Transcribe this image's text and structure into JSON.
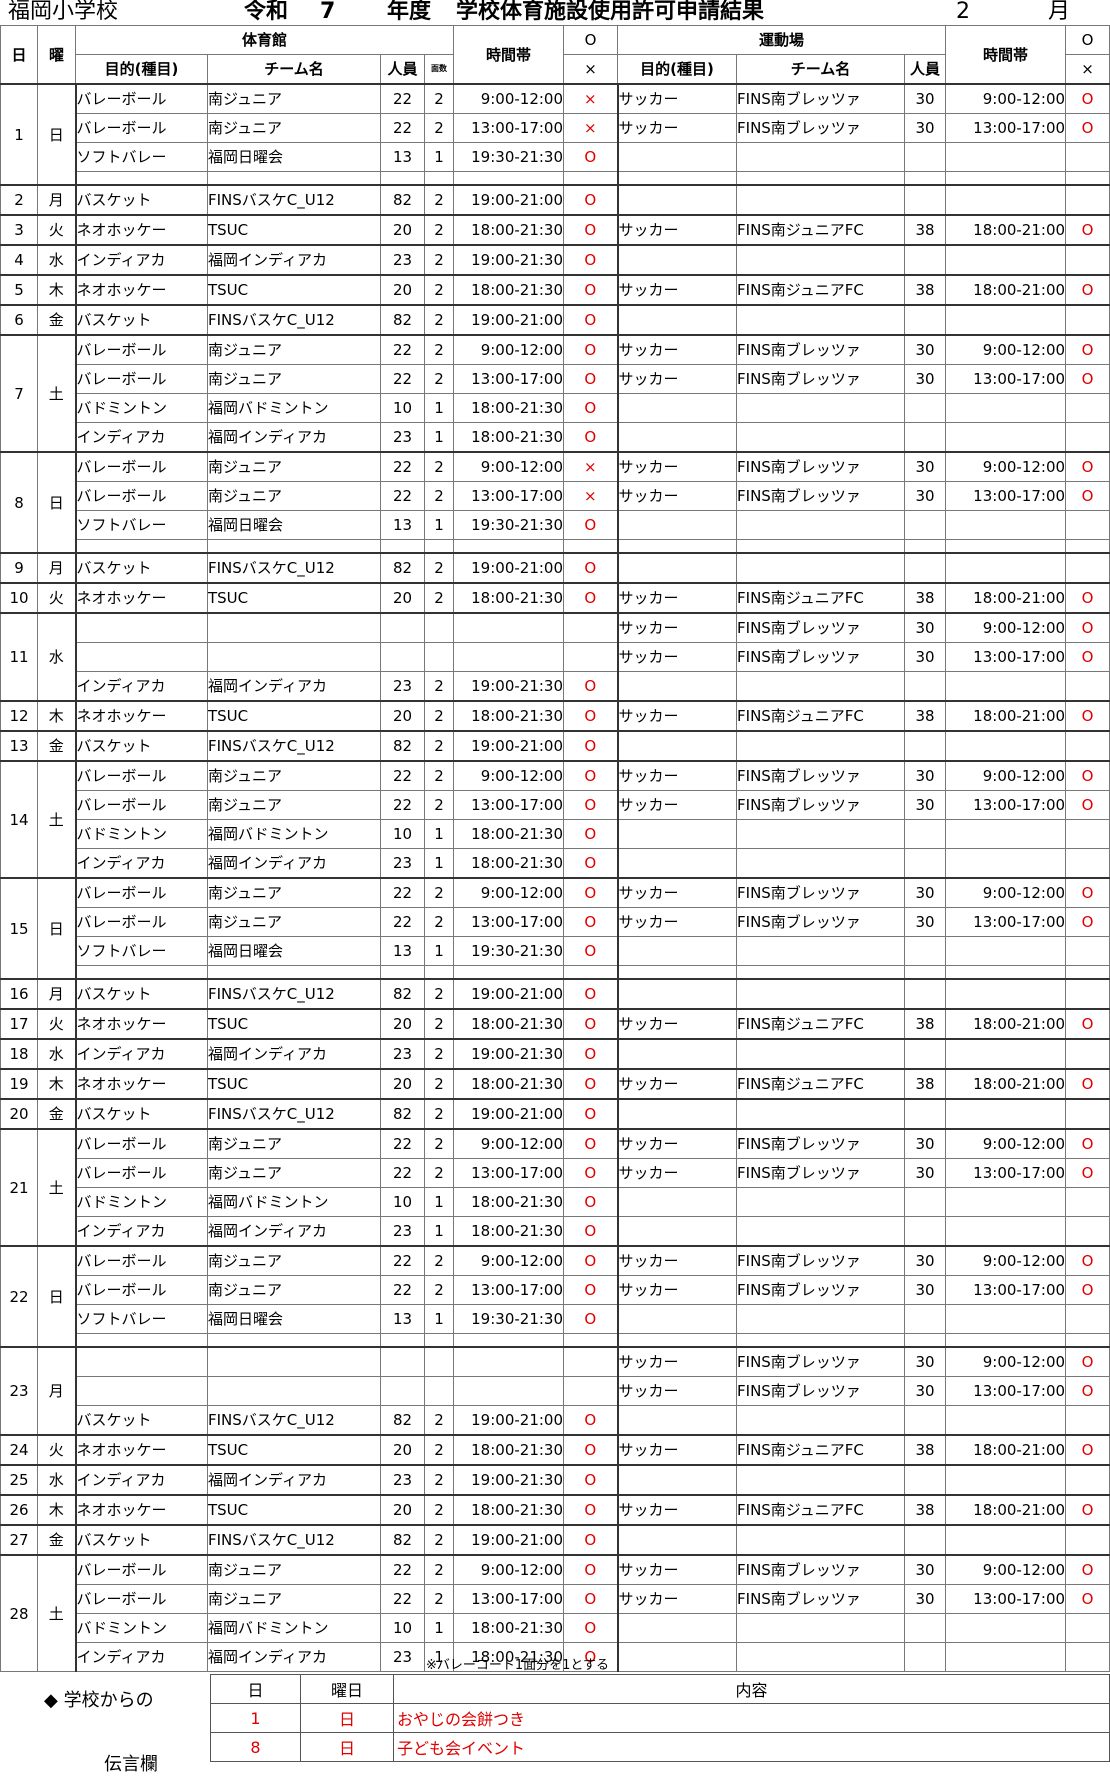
{
  "title": {
    "school": "福岡小学校",
    "era": "令和",
    "year_num": "7",
    "nendo": "年度",
    "main": "学校体育施設使用許可申請結果",
    "month": "2",
    "getsu": "月"
  },
  "header": {
    "day": "日",
    "dow": "曜",
    "gym": "体育館",
    "field": "運動場",
    "purpose": "目的(種目)",
    "team": "チーム名",
    "people": "人員",
    "courts": "面数",
    "time": "時間帯",
    "ok": "O",
    "ng": "×"
  },
  "days": [
    {
      "day": "1",
      "dow": "日",
      "rows": [
        {
          "g": [
            "バレーボール",
            "南ジュニア",
            "22",
            "2",
            "9:00-12:00",
            "×"
          ],
          "f": [
            "サッカー",
            "FINS南ブレッツァ",
            "30",
            "9:00-12:00",
            "O"
          ]
        },
        {
          "g": [
            "バレーボール",
            "南ジュニア",
            "22",
            "2",
            "13:00-17:00",
            "×"
          ],
          "f": [
            "サッカー",
            "FINS南ブレッツァ",
            "30",
            "13:00-17:00",
            "O"
          ]
        },
        {
          "g": [
            "ソフトバレー",
            "福岡日曜会",
            "13",
            "1",
            "19:30-21:30",
            "O"
          ],
          "f": [
            "",
            "",
            "",
            "",
            ""
          ]
        },
        {
          "g": [
            "",
            "",
            "",
            "",
            "",
            ""
          ],
          "f": [
            "",
            "",
            "",
            "",
            ""
          ],
          "thin": true
        }
      ]
    },
    {
      "day": "2",
      "dow": "月",
      "rows": [
        {
          "g": [
            "バスケット",
            "FINSバスケC_U12",
            "82",
            "2",
            "19:00-21:00",
            "O"
          ],
          "f": [
            "",
            "",
            "",
            "",
            ""
          ]
        }
      ]
    },
    {
      "day": "3",
      "dow": "火",
      "rows": [
        {
          "g": [
            "ネオホッケー",
            "TSUC",
            "20",
            "2",
            "18:00-21:30",
            "O"
          ],
          "f": [
            "サッカー",
            "FINS南ジュニアFC",
            "38",
            "18:00-21:00",
            "O"
          ]
        }
      ]
    },
    {
      "day": "4",
      "dow": "水",
      "rows": [
        {
          "g": [
            "インディアカ",
            "福岡インディアカ",
            "23",
            "2",
            "19:00-21:30",
            "O"
          ],
          "f": [
            "",
            "",
            "",
            "",
            ""
          ]
        }
      ]
    },
    {
      "day": "5",
      "dow": "木",
      "rows": [
        {
          "g": [
            "ネオホッケー",
            "TSUC",
            "20",
            "2",
            "18:00-21:30",
            "O"
          ],
          "f": [
            "サッカー",
            "FINS南ジュニアFC",
            "38",
            "18:00-21:00",
            "O"
          ]
        }
      ]
    },
    {
      "day": "6",
      "dow": "金",
      "rows": [
        {
          "g": [
            "バスケット",
            "FINSバスケC_U12",
            "82",
            "2",
            "19:00-21:00",
            "O"
          ],
          "f": [
            "",
            "",
            "",
            "",
            ""
          ]
        }
      ]
    },
    {
      "day": "7",
      "dow": "土",
      "rows": [
        {
          "g": [
            "バレーボール",
            "南ジュニア",
            "22",
            "2",
            "9:00-12:00",
            "O"
          ],
          "f": [
            "サッカー",
            "FINS南ブレッツァ",
            "30",
            "9:00-12:00",
            "O"
          ]
        },
        {
          "g": [
            "バレーボール",
            "南ジュニア",
            "22",
            "2",
            "13:00-17:00",
            "O"
          ],
          "f": [
            "サッカー",
            "FINS南ブレッツァ",
            "30",
            "13:00-17:00",
            "O"
          ]
        },
        {
          "g": [
            "バドミントン",
            "福岡バドミントン",
            "10",
            "1",
            "18:00-21:30",
            "O"
          ],
          "f": [
            "",
            "",
            "",
            "",
            ""
          ]
        },
        {
          "g": [
            "インディアカ",
            "福岡インディアカ",
            "23",
            "1",
            "18:00-21:30",
            "O"
          ],
          "f": [
            "",
            "",
            "",
            "",
            ""
          ]
        }
      ]
    },
    {
      "day": "8",
      "dow": "日",
      "rows": [
        {
          "g": [
            "バレーボール",
            "南ジュニア",
            "22",
            "2",
            "9:00-12:00",
            "×"
          ],
          "f": [
            "サッカー",
            "FINS南ブレッツァ",
            "30",
            "9:00-12:00",
            "O"
          ]
        },
        {
          "g": [
            "バレーボール",
            "南ジュニア",
            "22",
            "2",
            "13:00-17:00",
            "×"
          ],
          "f": [
            "サッカー",
            "FINS南ブレッツァ",
            "30",
            "13:00-17:00",
            "O"
          ]
        },
        {
          "g": [
            "ソフトバレー",
            "福岡日曜会",
            "13",
            "1",
            "19:30-21:30",
            "O"
          ],
          "f": [
            "",
            "",
            "",
            "",
            ""
          ]
        },
        {
          "g": [
            "",
            "",
            "",
            "",
            "",
            ""
          ],
          "f": [
            "",
            "",
            "",
            "",
            ""
          ],
          "thin": true
        }
      ]
    },
    {
      "day": "9",
      "dow": "月",
      "rows": [
        {
          "g": [
            "バスケット",
            "FINSバスケC_U12",
            "82",
            "2",
            "19:00-21:00",
            "O"
          ],
          "f": [
            "",
            "",
            "",
            "",
            ""
          ]
        }
      ]
    },
    {
      "day": "10",
      "dow": "火",
      "rows": [
        {
          "g": [
            "ネオホッケー",
            "TSUC",
            "20",
            "2",
            "18:00-21:30",
            "O"
          ],
          "f": [
            "サッカー",
            "FINS南ジュニアFC",
            "38",
            "18:00-21:00",
            "O"
          ]
        }
      ]
    },
    {
      "day": "11",
      "dow": "水",
      "rows": [
        {
          "g": [
            "",
            "",
            "",
            "",
            "",
            ""
          ],
          "f": [
            "サッカー",
            "FINS南ブレッツァ",
            "30",
            "9:00-12:00",
            "O"
          ]
        },
        {
          "g": [
            "",
            "",
            "",
            "",
            "",
            ""
          ],
          "f": [
            "サッカー",
            "FINS南ブレッツァ",
            "30",
            "13:00-17:00",
            "O"
          ]
        },
        {
          "g": [
            "インディアカ",
            "福岡インディアカ",
            "23",
            "2",
            "19:00-21:30",
            "O"
          ],
          "f": [
            "",
            "",
            "",
            "",
            ""
          ]
        }
      ]
    },
    {
      "day": "12",
      "dow": "木",
      "rows": [
        {
          "g": [
            "ネオホッケー",
            "TSUC",
            "20",
            "2",
            "18:00-21:30",
            "O"
          ],
          "f": [
            "サッカー",
            "FINS南ジュニアFC",
            "38",
            "18:00-21:00",
            "O"
          ]
        }
      ]
    },
    {
      "day": "13",
      "dow": "金",
      "rows": [
        {
          "g": [
            "バスケット",
            "FINSバスケC_U12",
            "82",
            "2",
            "19:00-21:00",
            "O"
          ],
          "f": [
            "",
            "",
            "",
            "",
            ""
          ]
        }
      ]
    },
    {
      "day": "14",
      "dow": "土",
      "rows": [
        {
          "g": [
            "バレーボール",
            "南ジュニア",
            "22",
            "2",
            "9:00-12:00",
            "O"
          ],
          "f": [
            "サッカー",
            "FINS南ブレッツァ",
            "30",
            "9:00-12:00",
            "O"
          ]
        },
        {
          "g": [
            "バレーボール",
            "南ジュニア",
            "22",
            "2",
            "13:00-17:00",
            "O"
          ],
          "f": [
            "サッカー",
            "FINS南ブレッツァ",
            "30",
            "13:00-17:00",
            "O"
          ]
        },
        {
          "g": [
            "バドミントン",
            "福岡バドミントン",
            "10",
            "1",
            "18:00-21:30",
            "O"
          ],
          "f": [
            "",
            "",
            "",
            "",
            ""
          ]
        },
        {
          "g": [
            "インディアカ",
            "福岡インディアカ",
            "23",
            "1",
            "18:00-21:30",
            "O"
          ],
          "f": [
            "",
            "",
            "",
            "",
            ""
          ]
        }
      ]
    },
    {
      "day": "15",
      "dow": "日",
      "rows": [
        {
          "g": [
            "バレーボール",
            "南ジュニア",
            "22",
            "2",
            "9:00-12:00",
            "O"
          ],
          "f": [
            "サッカー",
            "FINS南ブレッツァ",
            "30",
            "9:00-12:00",
            "O"
          ]
        },
        {
          "g": [
            "バレーボール",
            "南ジュニア",
            "22",
            "2",
            "13:00-17:00",
            "O"
          ],
          "f": [
            "サッカー",
            "FINS南ブレッツァ",
            "30",
            "13:00-17:00",
            "O"
          ]
        },
        {
          "g": [
            "ソフトバレー",
            "福岡日曜会",
            "13",
            "1",
            "19:30-21:30",
            "O"
          ],
          "f": [
            "",
            "",
            "",
            "",
            ""
          ]
        },
        {
          "g": [
            "",
            "",
            "",
            "",
            "",
            ""
          ],
          "f": [
            "",
            "",
            "",
            "",
            ""
          ],
          "thin": true
        }
      ]
    },
    {
      "day": "16",
      "dow": "月",
      "rows": [
        {
          "g": [
            "バスケット",
            "FINSバスケC_U12",
            "82",
            "2",
            "19:00-21:00",
            "O"
          ],
          "f": [
            "",
            "",
            "",
            "",
            ""
          ]
        }
      ]
    },
    {
      "day": "17",
      "dow": "火",
      "rows": [
        {
          "g": [
            "ネオホッケー",
            "TSUC",
            "20",
            "2",
            "18:00-21:30",
            "O"
          ],
          "f": [
            "サッカー",
            "FINS南ジュニアFC",
            "38",
            "18:00-21:00",
            "O"
          ]
        }
      ]
    },
    {
      "day": "18",
      "dow": "水",
      "rows": [
        {
          "g": [
            "インディアカ",
            "福岡インディアカ",
            "23",
            "2",
            "19:00-21:30",
            "O"
          ],
          "f": [
            "",
            "",
            "",
            "",
            ""
          ]
        }
      ]
    },
    {
      "day": "19",
      "dow": "木",
      "rows": [
        {
          "g": [
            "ネオホッケー",
            "TSUC",
            "20",
            "2",
            "18:00-21:30",
            "O"
          ],
          "f": [
            "サッカー",
            "FINS南ジュニアFC",
            "38",
            "18:00-21:00",
            "O"
          ]
        }
      ]
    },
    {
      "day": "20",
      "dow": "金",
      "rows": [
        {
          "g": [
            "バスケット",
            "FINSバスケC_U12",
            "82",
            "2",
            "19:00-21:00",
            "O"
          ],
          "f": [
            "",
            "",
            "",
            "",
            ""
          ]
        }
      ]
    },
    {
      "day": "21",
      "dow": "土",
      "rows": [
        {
          "g": [
            "バレーボール",
            "南ジュニア",
            "22",
            "2",
            "9:00-12:00",
            "O"
          ],
          "f": [
            "サッカー",
            "FINS南ブレッツァ",
            "30",
            "9:00-12:00",
            "O"
          ]
        },
        {
          "g": [
            "バレーボール",
            "南ジュニア",
            "22",
            "2",
            "13:00-17:00",
            "O"
          ],
          "f": [
            "サッカー",
            "FINS南ブレッツァ",
            "30",
            "13:00-17:00",
            "O"
          ]
        },
        {
          "g": [
            "バドミントン",
            "福岡バドミントン",
            "10",
            "1",
            "18:00-21:30",
            "O"
          ],
          "f": [
            "",
            "",
            "",
            "",
            ""
          ]
        },
        {
          "g": [
            "インディアカ",
            "福岡インディアカ",
            "23",
            "1",
            "18:00-21:30",
            "O"
          ],
          "f": [
            "",
            "",
            "",
            "",
            ""
          ]
        }
      ]
    },
    {
      "day": "22",
      "dow": "日",
      "rows": [
        {
          "g": [
            "バレーボール",
            "南ジュニア",
            "22",
            "2",
            "9:00-12:00",
            "O"
          ],
          "f": [
            "サッカー",
            "FINS南ブレッツァ",
            "30",
            "9:00-12:00",
            "O"
          ]
        },
        {
          "g": [
            "バレーボール",
            "南ジュニア",
            "22",
            "2",
            "13:00-17:00",
            "O"
          ],
          "f": [
            "サッカー",
            "FINS南ブレッツァ",
            "30",
            "13:00-17:00",
            "O"
          ]
        },
        {
          "g": [
            "ソフトバレー",
            "福岡日曜会",
            "13",
            "1",
            "19:30-21:30",
            "O"
          ],
          "f": [
            "",
            "",
            "",
            "",
            ""
          ]
        },
        {
          "g": [
            "",
            "",
            "",
            "",
            "",
            ""
          ],
          "f": [
            "",
            "",
            "",
            "",
            ""
          ],
          "thin": true
        }
      ]
    },
    {
      "day": "23",
      "dow": "月",
      "rows": [
        {
          "g": [
            "",
            "",
            "",
            "",
            "",
            ""
          ],
          "f": [
            "サッカー",
            "FINS南ブレッツァ",
            "30",
            "9:00-12:00",
            "O"
          ]
        },
        {
          "g": [
            "",
            "",
            "",
            "",
            "",
            ""
          ],
          "f": [
            "サッカー",
            "FINS南ブレッツァ",
            "30",
            "13:00-17:00",
            "O"
          ]
        },
        {
          "g": [
            "バスケット",
            "FINSバスケC_U12",
            "82",
            "2",
            "19:00-21:00",
            "O"
          ],
          "f": [
            "",
            "",
            "",
            "",
            ""
          ]
        }
      ]
    },
    {
      "day": "24",
      "dow": "火",
      "rows": [
        {
          "g": [
            "ネオホッケー",
            "TSUC",
            "20",
            "2",
            "18:00-21:30",
            "O"
          ],
          "f": [
            "サッカー",
            "FINS南ジュニアFC",
            "38",
            "18:00-21:00",
            "O"
          ]
        }
      ]
    },
    {
      "day": "25",
      "dow": "水",
      "rows": [
        {
          "g": [
            "インディアカ",
            "福岡インディアカ",
            "23",
            "2",
            "19:00-21:30",
            "O"
          ],
          "f": [
            "",
            "",
            "",
            "",
            ""
          ]
        }
      ]
    },
    {
      "day": "26",
      "dow": "木",
      "rows": [
        {
          "g": [
            "ネオホッケー",
            "TSUC",
            "20",
            "2",
            "18:00-21:30",
            "O"
          ],
          "f": [
            "サッカー",
            "FINS南ジュニアFC",
            "38",
            "18:00-21:00",
            "O"
          ]
        }
      ]
    },
    {
      "day": "27",
      "dow": "金",
      "rows": [
        {
          "g": [
            "バスケット",
            "FINSバスケC_U12",
            "82",
            "2",
            "19:00-21:00",
            "O"
          ],
          "f": [
            "",
            "",
            "",
            "",
            ""
          ]
        }
      ]
    },
    {
      "day": "28",
      "dow": "土",
      "rows": [
        {
          "g": [
            "バレーボール",
            "南ジュニア",
            "22",
            "2",
            "9:00-12:00",
            "O"
          ],
          "f": [
            "サッカー",
            "FINS南ブレッツァ",
            "30",
            "9:00-12:00",
            "O"
          ]
        },
        {
          "g": [
            "バレーボール",
            "南ジュニア",
            "22",
            "2",
            "13:00-17:00",
            "O"
          ],
          "f": [
            "サッカー",
            "FINS南ブレッツァ",
            "30",
            "13:00-17:00",
            "O"
          ]
        },
        {
          "g": [
            "バドミントン",
            "福岡バドミントン",
            "10",
            "1",
            "18:00-21:30",
            "O"
          ],
          "f": [
            "",
            "",
            "",
            "",
            ""
          ]
        },
        {
          "g": [
            "インディアカ",
            "福岡インディアカ",
            "23",
            "1",
            "18:00-21:30",
            "O"
          ],
          "f": [
            "",
            "",
            "",
            "",
            ""
          ]
        }
      ]
    }
  ],
  "note": "※バレーコート1面分を1とする",
  "memo": {
    "label_line1": "◆ 学校からの",
    "label_line2": "伝言欄",
    "headers": [
      "日",
      "曜日",
      "内容"
    ],
    "rows": [
      [
        "1",
        "日",
        "おやじの会餅つき"
      ],
      [
        "8",
        "日",
        "子ども会イベント"
      ]
    ],
    "accent_color": "#e00000"
  }
}
